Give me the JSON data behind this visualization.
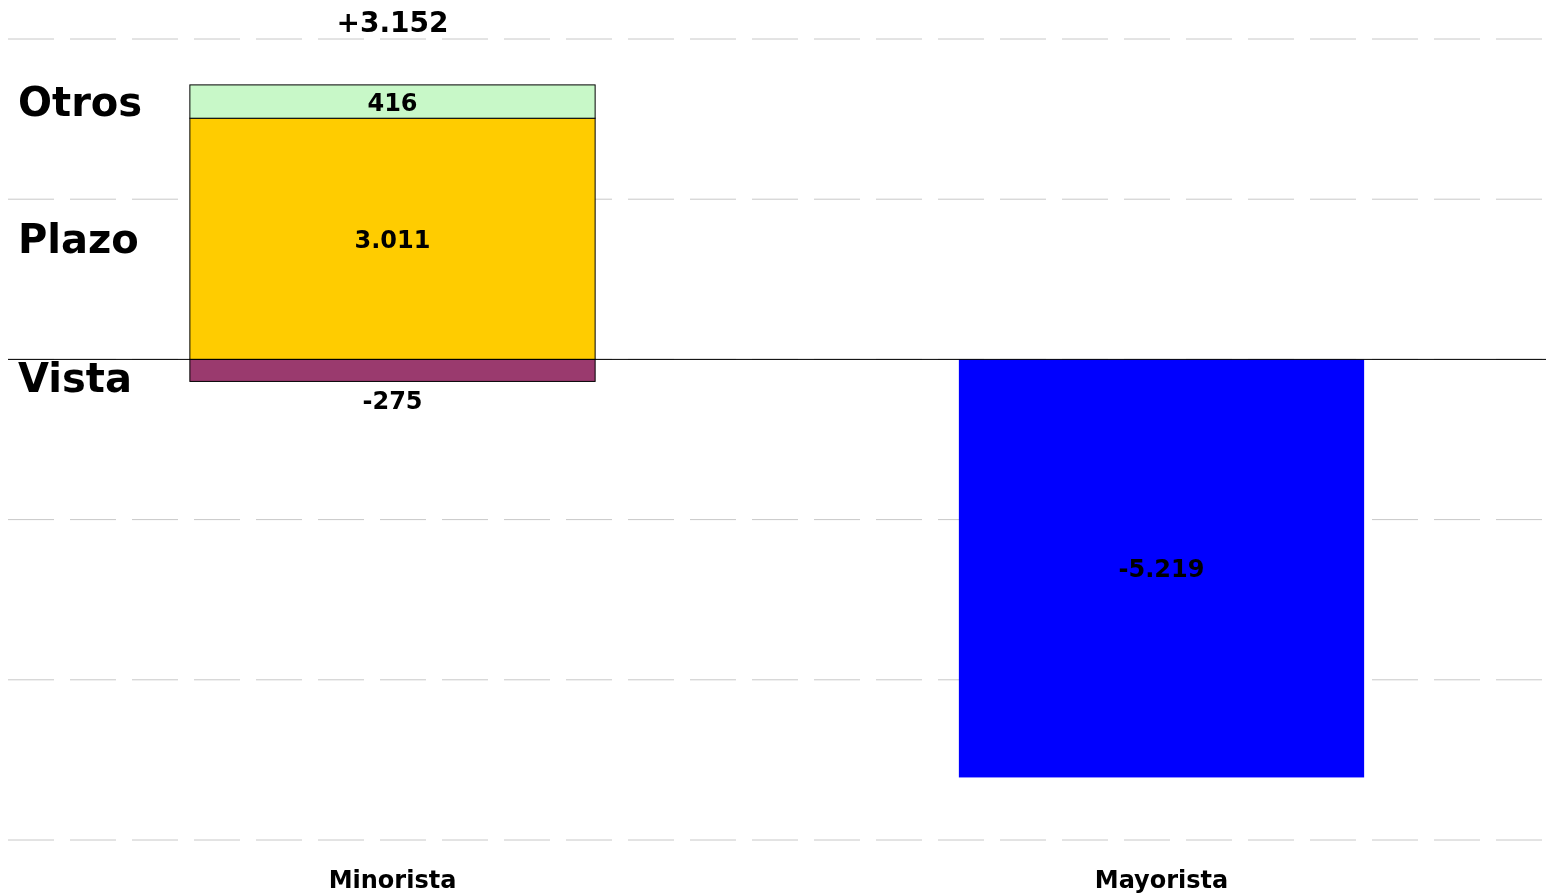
{
  "chart_data": {
    "type": "bar",
    "stacked": true,
    "categories": [
      "Minorista",
      "Mayorista"
    ],
    "series": [
      {
        "name": "Vista",
        "color": "#9a3a6e",
        "values": [
          -275,
          null
        ],
        "value_labels": [
          "-275",
          null
        ]
      },
      {
        "name": "Plazo",
        "color": "#ffcc00",
        "values": [
          3011,
          null
        ],
        "value_labels": [
          "3.011",
          null
        ]
      },
      {
        "name": "Otros",
        "color": "#c8f8c8",
        "values": [
          416,
          null
        ],
        "value_labels": [
          "416",
          null
        ]
      },
      {
        "color": "#0000ff",
        "values": [
          null,
          -5219
        ],
        "value_labels": [
          null,
          "-5.219"
        ]
      }
    ],
    "totals": [
      "+3.152",
      null
    ],
    "ylim": [
      -6000,
      4000
    ],
    "yticks": [
      {
        "value": -6000,
        "label": null
      },
      {
        "value": -4000,
        "label": null
      },
      {
        "value": -2000,
        "label": null
      },
      {
        "value": 0,
        "label": null
      },
      {
        "value": 2000,
        "label": null
      },
      {
        "value": 4000,
        "label": null
      }
    ],
    "grid": "y",
    "legend": "left",
    "tick_labels": "x"
  }
}
